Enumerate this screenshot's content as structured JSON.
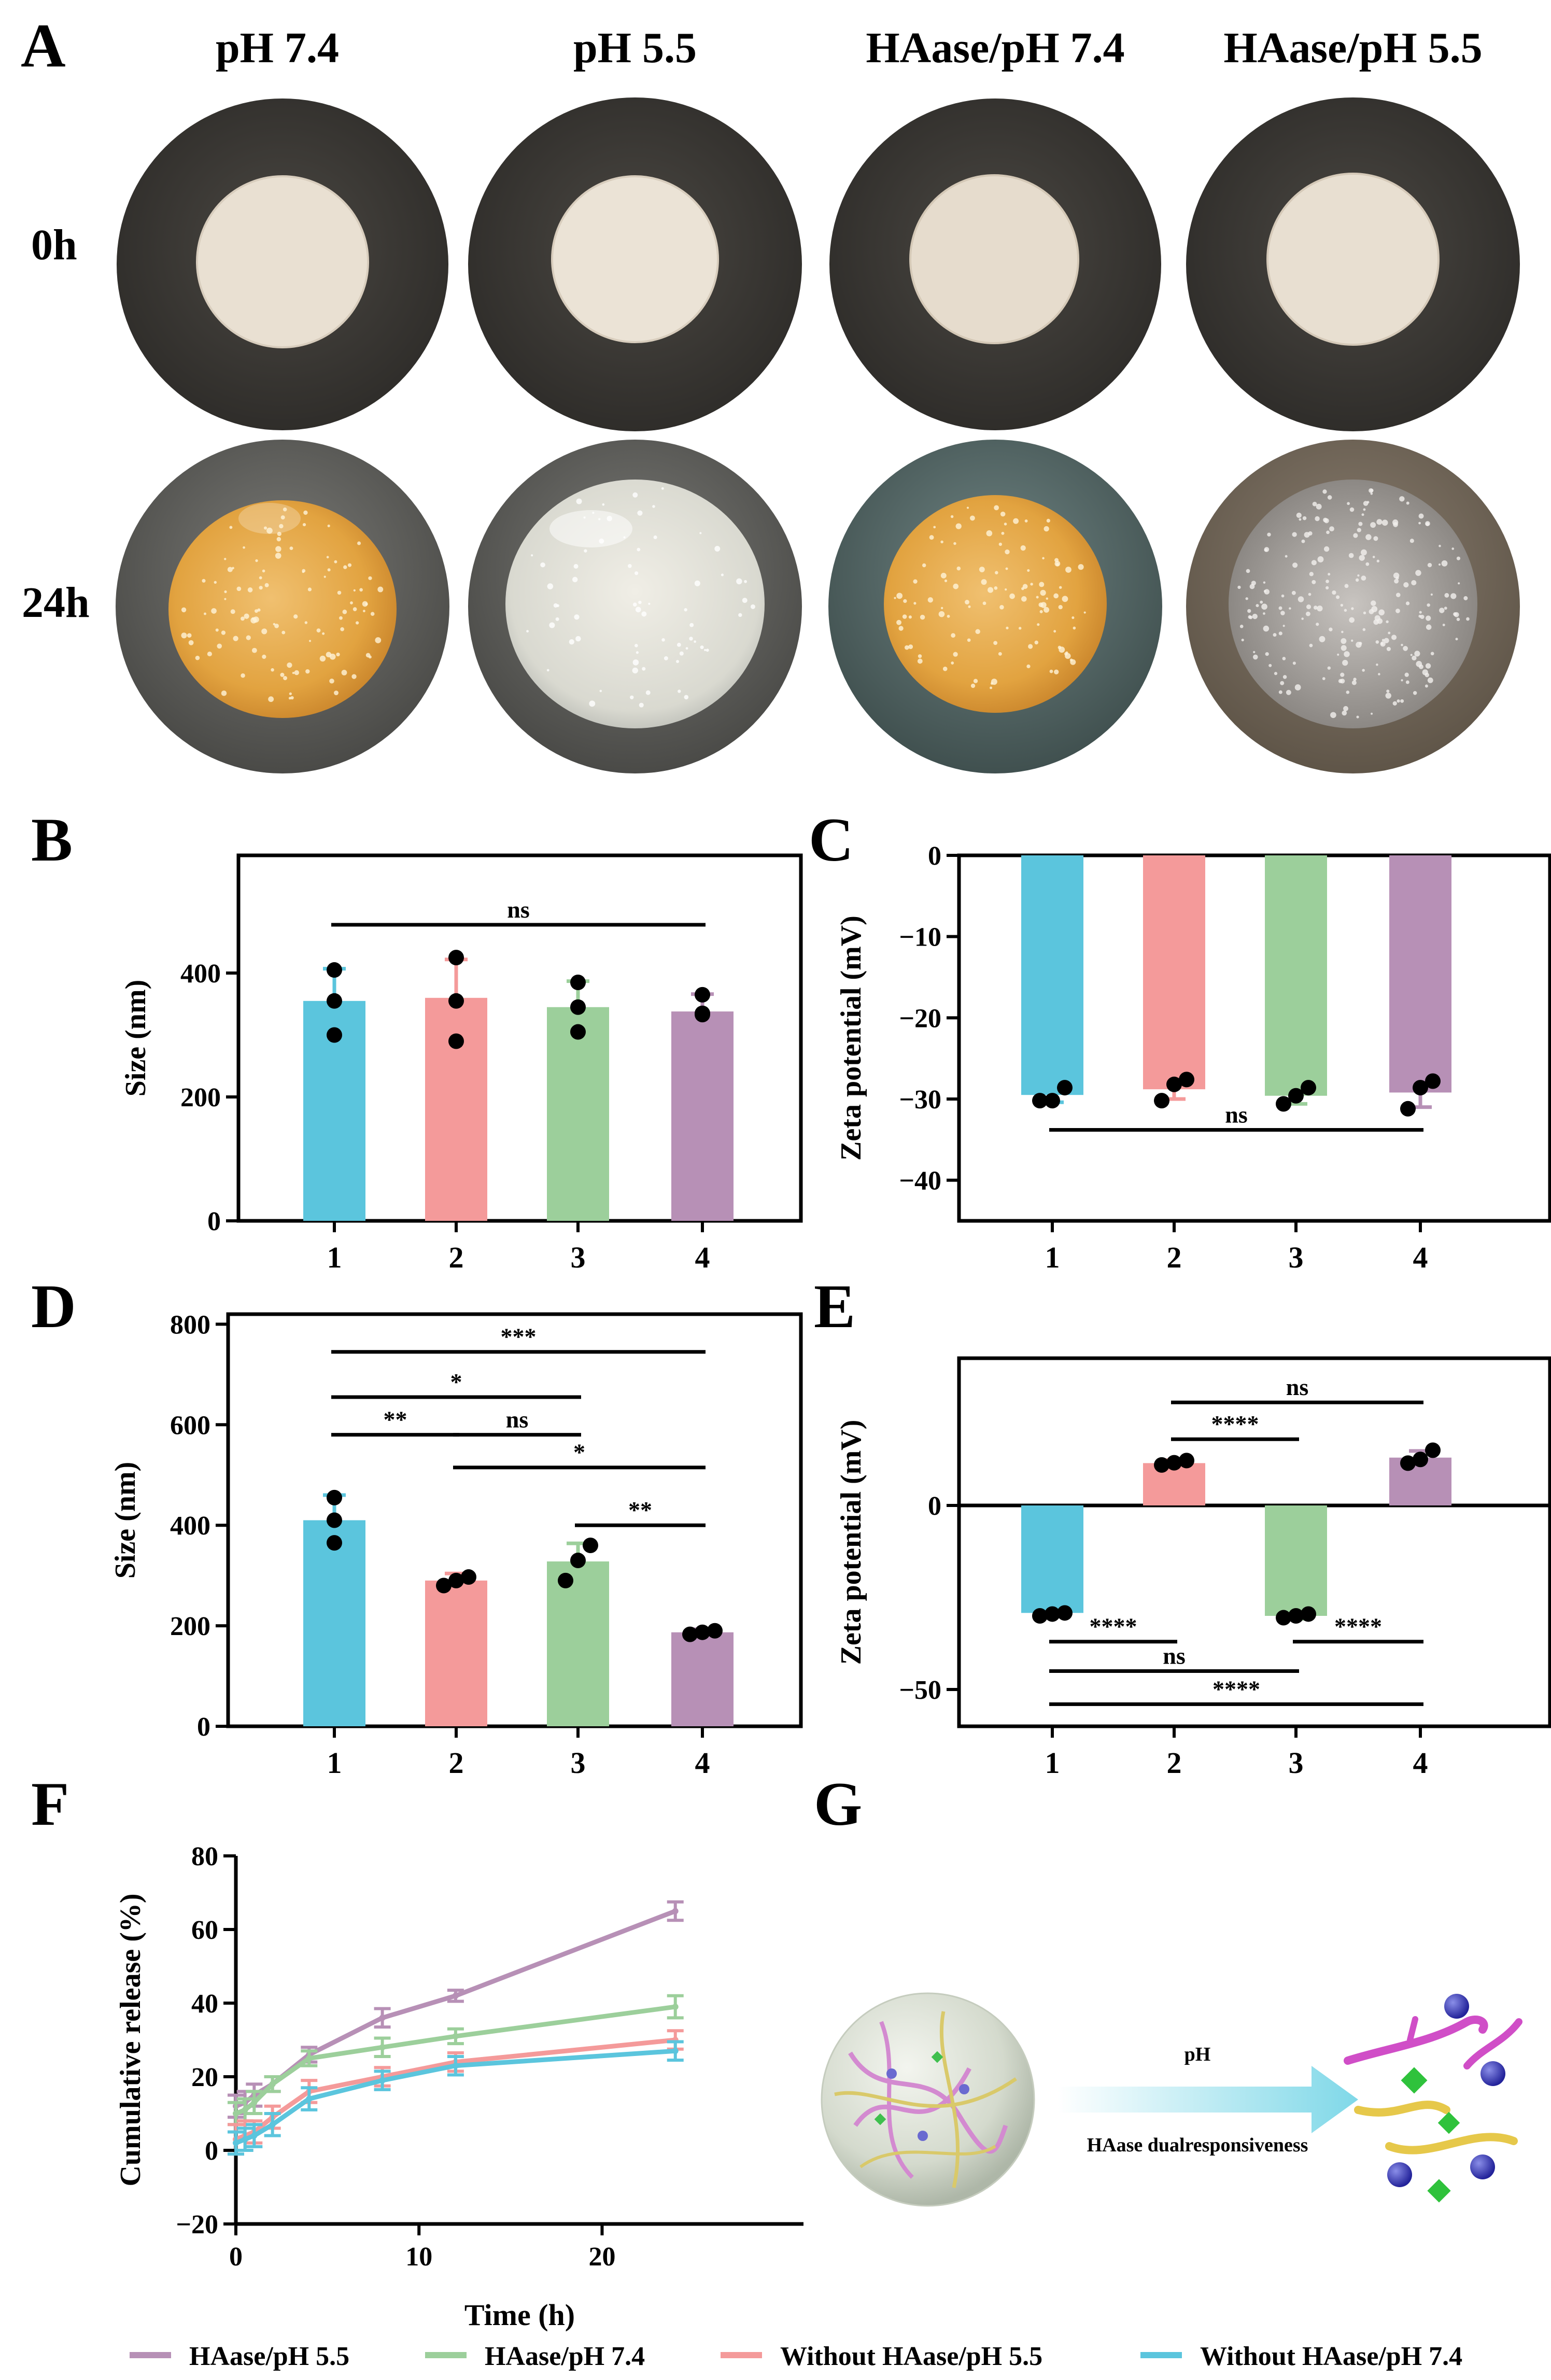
{
  "panel_labels": {
    "A": "A",
    "B": "B",
    "C": "C",
    "D": "D",
    "E": "E",
    "F": "F",
    "G": "G"
  },
  "panel_a": {
    "columns": [
      "pH 7.4",
      "pH 5.5",
      "HAase/pH 7.4",
      "HAase/pH 5.5"
    ],
    "rows": [
      "0h",
      "24h"
    ]
  },
  "panel_g": {
    "arrow_top_label": "pH",
    "arrow_bottom_label": "HAase dualresponsiveness"
  },
  "colors": {
    "blue": "#5bc5dd",
    "pink": "#f49a9a",
    "green": "#9ccf9b",
    "purple": "#b790b6",
    "dish_dark": "#3f3c38",
    "disc": "#e8ded0",
    "gel_orange": "#e4a744"
  },
  "chart_data": [
    {
      "id": "B",
      "type": "bar",
      "title": "",
      "xlabel": "",
      "ylabel": "Size (nm)",
      "categories": [
        "1",
        "2",
        "3",
        "4"
      ],
      "values": [
        355,
        360,
        345,
        338
      ],
      "errors": [
        52,
        62,
        42,
        28
      ],
      "points": [
        [
          300,
          355,
          405
        ],
        [
          290,
          355,
          425
        ],
        [
          305,
          345,
          385
        ],
        [
          333,
          335,
          365
        ]
      ],
      "ylim": [
        0,
        590
      ],
      "yticks": [
        0,
        200,
        400
      ],
      "colors": [
        "#5bc5dd",
        "#f49a9a",
        "#9ccf9b",
        "#b790b6"
      ],
      "annotations": [
        {
          "from": 1,
          "to": 4,
          "y": 478,
          "label": "ns"
        }
      ]
    },
    {
      "id": "C",
      "type": "bar",
      "title": "",
      "xlabel": "",
      "ylabel": "Zeta potential (mV)",
      "categories": [
        "1",
        "2",
        "3",
        "4"
      ],
      "values": [
        -29.5,
        -28.8,
        -29.6,
        -29.2
      ],
      "errors": [
        0.9,
        1.2,
        1.0,
        1.8
      ],
      "points": [
        [
          -30.2,
          -30.2,
          -28.6
        ],
        [
          -30.2,
          -28.2,
          -27.6
        ],
        [
          -30.6,
          -29.6,
          -28.6
        ],
        [
          -31.2,
          -28.6,
          -27.8
        ]
      ],
      "ylim": [
        -45,
        0
      ],
      "yticks": [
        -40,
        -30,
        -20,
        -10,
        0
      ],
      "colors": [
        "#5bc5dd",
        "#f49a9a",
        "#9ccf9b",
        "#b790b6"
      ],
      "annotations": [
        {
          "from": 1,
          "to": 4,
          "y": -33.8,
          "label": "ns"
        }
      ]
    },
    {
      "id": "D",
      "type": "bar",
      "title": "",
      "xlabel": "",
      "ylabel": "Size (nm)",
      "categories": [
        "1",
        "2",
        "3",
        "4"
      ],
      "values": [
        410,
        290,
        328,
        187
      ],
      "errors": [
        50,
        14,
        36,
        6
      ],
      "points": [
        [
          365,
          410,
          455
        ],
        [
          280,
          290,
          297
        ],
        [
          290,
          330,
          360
        ],
        [
          183,
          187,
          190
        ]
      ],
      "ylim": [
        0,
        820
      ],
      "yticks": [
        0,
        200,
        400,
        600,
        800
      ],
      "colors": [
        "#5bc5dd",
        "#f49a9a",
        "#9ccf9b",
        "#b790b6"
      ],
      "annotations": [
        {
          "from": 3,
          "to": 4,
          "y": 400,
          "label": "**"
        },
        {
          "from": 2,
          "to": 4,
          "y": 515,
          "label": "*"
        },
        {
          "from": 2,
          "to": 3,
          "y": 580,
          "label": "ns"
        },
        {
          "from": 1,
          "to": 2,
          "y": 580,
          "label": "**"
        },
        {
          "from": 1,
          "to": 3,
          "y": 655,
          "label": "*"
        },
        {
          "from": 1,
          "to": 4,
          "y": 745,
          "label": "***"
        }
      ]
    },
    {
      "id": "E",
      "type": "bar",
      "title": "",
      "xlabel": "",
      "ylabel": "Zeta potential (mV)",
      "categories": [
        "1",
        "2",
        "3",
        "4"
      ],
      "values": [
        -29.2,
        11.5,
        -30.0,
        13.0
      ],
      "errors": [
        0.8,
        0.8,
        0.8,
        1.8
      ],
      "points": [
        [
          -30.0,
          -29.5,
          -29.2
        ],
        [
          11.0,
          11.6,
          12.2
        ],
        [
          -30.5,
          -30.0,
          -29.5
        ],
        [
          11.5,
          12.5,
          15.0
        ]
      ],
      "ylim": [
        -60,
        40
      ],
      "yticks": [
        -50,
        0
      ],
      "colors": [
        "#5bc5dd",
        "#f49a9a",
        "#9ccf9b",
        "#b790b6"
      ],
      "annotations": [
        {
          "from": 2,
          "to": 3,
          "y": 18,
          "label": "****"
        },
        {
          "from": 2,
          "to": 4,
          "y": 28,
          "label": "ns"
        },
        {
          "from": 1,
          "to": 2,
          "y": -37,
          "label": "****"
        },
        {
          "from": 3,
          "to": 4,
          "y": -37,
          "label": "****"
        },
        {
          "from": 1,
          "to": 3,
          "y": -45,
          "label": "ns"
        },
        {
          "from": 1,
          "to": 4,
          "y": -54,
          "label": "****"
        }
      ]
    },
    {
      "id": "F",
      "type": "line",
      "title": "",
      "xlabel": "Time (h)",
      "ylabel": "Cumulative release (%)",
      "x": [
        0,
        0.5,
        1,
        2,
        4,
        8,
        12,
        24
      ],
      "xlim": [
        0,
        31
      ],
      "ylim": [
        -20,
        80
      ],
      "xticks": [
        0,
        10,
        20
      ],
      "yticks": [
        -20,
        0,
        20,
        40,
        60,
        80
      ],
      "series": [
        {
          "name": "HAase/pH 5.5",
          "color": "#b790b6",
          "values": [
            12,
            13,
            15,
            18,
            26,
            36,
            42,
            65
          ],
          "errors": [
            3,
            3,
            3,
            2,
            2,
            2.5,
            1.5,
            2.5
          ]
        },
        {
          "name": "HAase/pH 7.4",
          "color": "#9ccf9b",
          "values": [
            10,
            11,
            13,
            18,
            25,
            28,
            31,
            39
          ],
          "errors": [
            3,
            3,
            3,
            2,
            2,
            2.5,
            2,
            3
          ]
        },
        {
          "name": "Without HAase/pH 5.5",
          "color": "#f49a9a",
          "values": [
            3,
            4,
            5,
            9,
            16,
            20,
            24,
            30
          ],
          "errors": [
            4,
            4,
            3,
            3,
            3,
            2.5,
            2.5,
            2.5
          ]
        },
        {
          "name": "Without HAase/pH 7.4",
          "color": "#5bc5dd",
          "values": [
            2,
            3,
            4,
            7,
            14,
            19,
            23,
            27
          ],
          "errors": [
            3,
            3,
            3,
            3,
            3,
            2.5,
            2.5,
            2.5
          ]
        }
      ]
    }
  ]
}
